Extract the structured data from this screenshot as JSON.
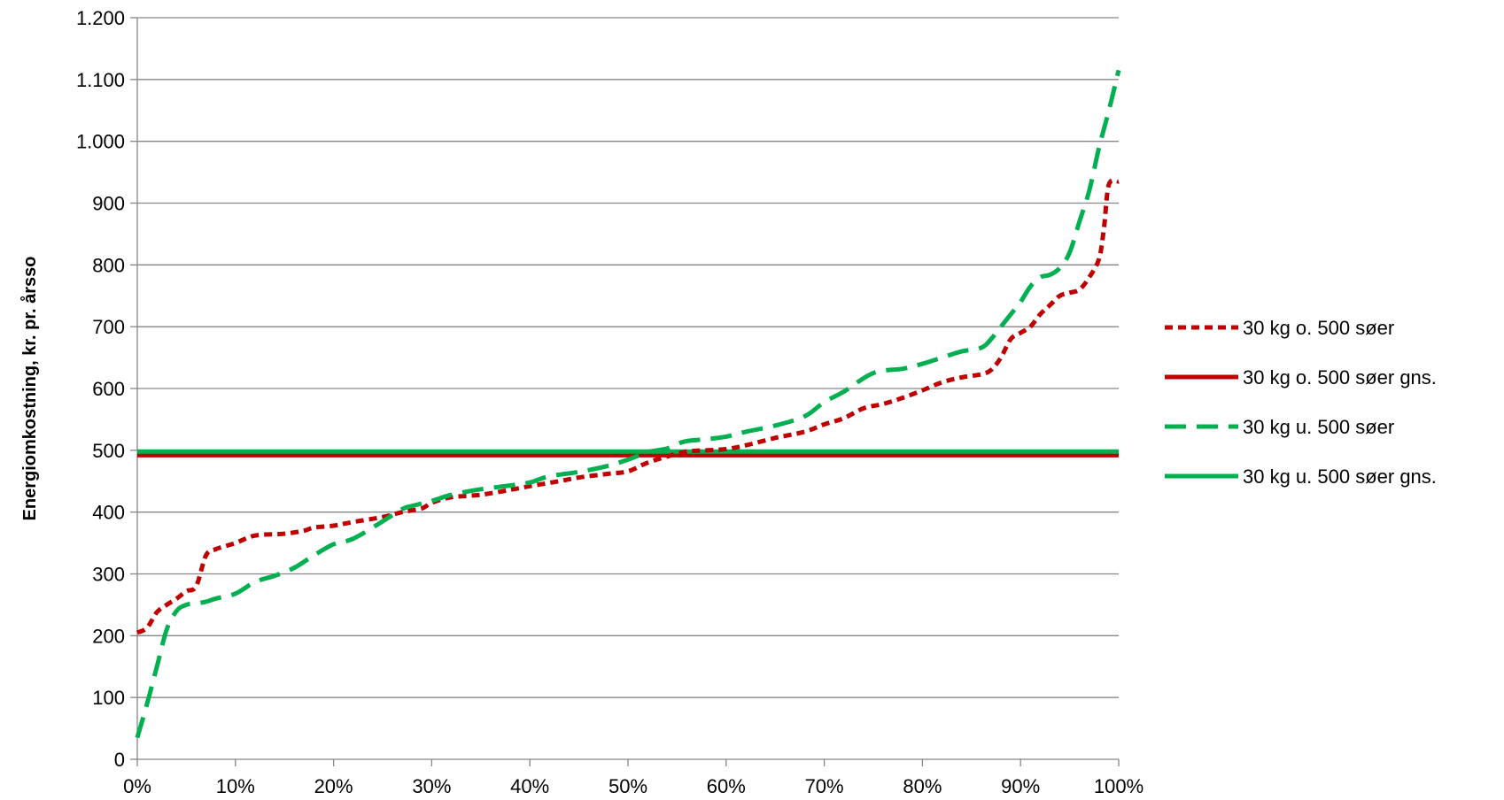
{
  "chart_data": {
    "type": "line",
    "title": "",
    "xlabel": "",
    "ylabel": "Energiomkostning, kr. pr. årsso",
    "xlim": [
      0,
      100
    ],
    "ylim": [
      0,
      1200
    ],
    "grid": true,
    "legend_position": "right",
    "x_ticks": [
      0,
      10,
      20,
      30,
      40,
      50,
      60,
      70,
      80,
      90,
      100
    ],
    "x_tick_labels": [
      "0%",
      "10%",
      "20%",
      "30%",
      "40%",
      "50%",
      "60%",
      "70%",
      "80%",
      "90%",
      "100%"
    ],
    "y_ticks": [
      0,
      100,
      200,
      300,
      400,
      500,
      600,
      700,
      800,
      900,
      1000,
      1100,
      1200
    ],
    "y_tick_labels": [
      "0",
      "100",
      "200",
      "300",
      "400",
      "500",
      "600",
      "700",
      "800",
      "900",
      "1.000",
      "1.100",
      "1.200"
    ],
    "series": [
      {
        "name": "30 kg o. 500 søer",
        "color": "#C00000",
        "style": "dotted",
        "x": [
          0,
          1,
          2,
          3,
          4,
          5,
          6,
          7,
          8,
          10,
          12,
          15,
          17,
          18,
          20,
          22,
          25,
          27,
          29,
          30,
          32,
          35,
          38,
          40,
          43,
          45,
          48,
          50,
          52,
          54,
          56,
          58,
          60,
          62,
          65,
          68,
          70,
          72,
          74,
          76,
          78,
          80,
          82,
          84,
          86,
          87,
          88,
          89,
          90,
          91,
          92,
          93,
          94,
          95,
          96,
          97,
          98,
          98.5,
          99,
          100
        ],
        "y": [
          205,
          213,
          238,
          250,
          260,
          272,
          280,
          330,
          340,
          350,
          362,
          365,
          370,
          375,
          378,
          384,
          392,
          400,
          406,
          415,
          424,
          428,
          436,
          442,
          450,
          456,
          462,
          466,
          480,
          490,
          498,
          500,
          502,
          508,
          520,
          530,
          542,
          552,
          568,
          575,
          585,
          597,
          610,
          618,
          623,
          630,
          650,
          680,
          690,
          700,
          720,
          735,
          750,
          755,
          760,
          780,
          810,
          860,
          930,
          935
        ]
      },
      {
        "name": "30 kg o. 500 søer gns.",
        "color": "#C00000",
        "style": "solid",
        "x": [
          0,
          100
        ],
        "y": [
          492,
          492
        ]
      },
      {
        "name": "30 kg u. 500 søer",
        "color": "#00B050",
        "style": "dashed",
        "x": [
          0,
          1,
          2,
          3,
          4,
          5,
          6,
          7,
          8,
          10,
          12,
          14,
          16,
          18,
          20,
          22,
          25,
          27,
          28,
          30,
          32,
          35,
          38,
          40,
          42,
          45,
          48,
          50,
          52,
          53,
          54,
          55,
          56,
          58,
          60,
          62,
          65,
          68,
          70,
          72,
          75,
          78,
          80,
          82,
          84,
          86,
          87,
          88,
          89,
          90,
          91,
          92,
          93,
          94,
          95,
          96,
          97,
          98,
          99,
          100
        ],
        "y": [
          35,
          90,
          150,
          210,
          240,
          250,
          252,
          255,
          260,
          268,
          287,
          297,
          310,
          330,
          348,
          357,
          385,
          405,
          410,
          418,
          428,
          437,
          443,
          448,
          458,
          465,
          475,
          485,
          497,
          500,
          503,
          510,
          515,
          518,
          522,
          530,
          540,
          555,
          578,
          595,
          625,
          632,
          640,
          650,
          660,
          666,
          680,
          700,
          720,
          740,
          765,
          780,
          784,
          795,
          820,
          870,
          920,
          990,
          1050,
          1115
        ]
      },
      {
        "name": "30 kg u. 500 søer gns.",
        "color": "#00B050",
        "style": "solid",
        "x": [
          0,
          100
        ],
        "y": [
          498,
          498
        ]
      }
    ]
  }
}
